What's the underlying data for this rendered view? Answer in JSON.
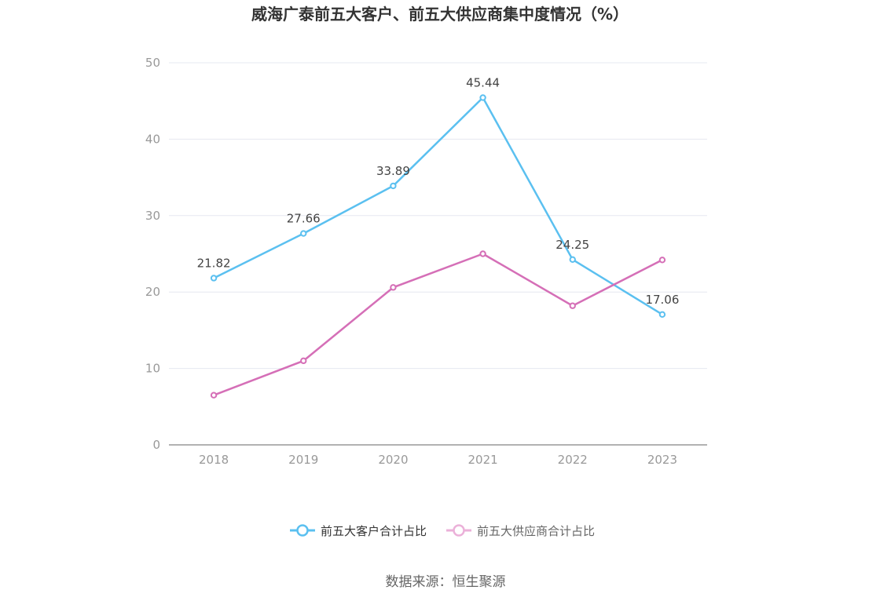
{
  "chart_data": {
    "type": "line",
    "title": "威海广泰前五大客户、前五大供应商集中度情况（%）",
    "categories": [
      "2018",
      "2019",
      "2020",
      "2021",
      "2022",
      "2023"
    ],
    "ylim": [
      0,
      50
    ],
    "yticks": [
      0,
      10,
      20,
      30,
      40,
      50
    ],
    "grid": true,
    "legend_position": "bottom",
    "series": [
      {
        "name": "前五大客户合计占比",
        "color": "#5bc0f0",
        "values": [
          21.82,
          27.66,
          33.89,
          45.44,
          24.25,
          17.06
        ],
        "labels": [
          "21.82",
          "27.66",
          "33.89",
          "45.44",
          "24.25",
          "17.06"
        ]
      },
      {
        "name": "前五大供应商合计占比",
        "color": "#d56fb7",
        "legend_color": "#ebb1d9",
        "values": [
          6.5,
          11.0,
          20.6,
          25.0,
          18.2,
          24.2
        ]
      }
    ]
  },
  "source": "数据来源：恒生聚源"
}
